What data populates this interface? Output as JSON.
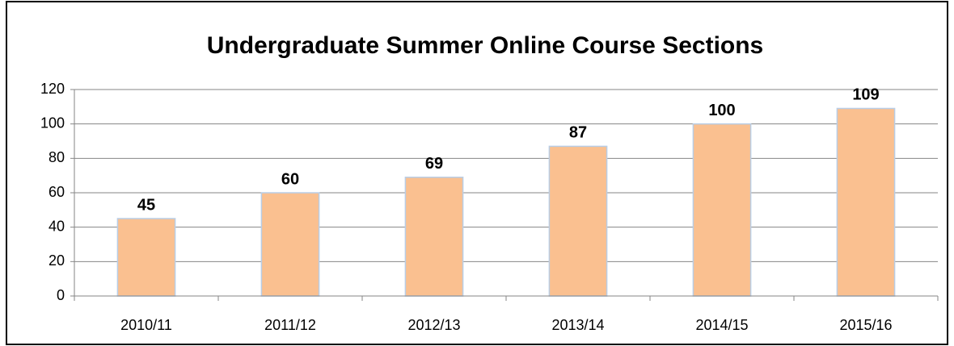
{
  "chart_data": {
    "type": "bar",
    "title": "Undergraduate Summer Online Course Sections",
    "categories": [
      "2010/11",
      "2011/12",
      "2012/13",
      "2013/14",
      "2014/15",
      "2015/16"
    ],
    "values": [
      45,
      60,
      69,
      87,
      100,
      109
    ],
    "color": "#fac090",
    "ylim": [
      0,
      120
    ],
    "yticks": [
      0,
      20,
      40,
      60,
      80,
      100,
      120
    ],
    "grid": true
  }
}
